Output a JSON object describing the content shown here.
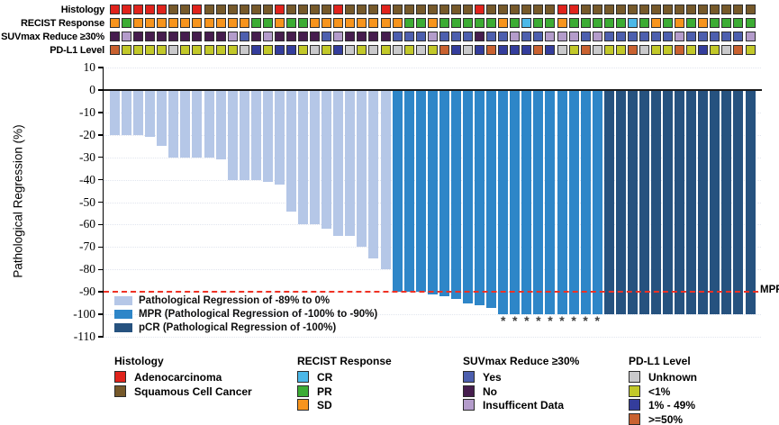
{
  "tracks": {
    "labels": [
      "Histology",
      "RECIST Response",
      "SUVmax Reduce ≥30%",
      "PD-L1 Level"
    ],
    "palette": {
      "R": "#E0231C",
      "S": "#76592A",
      "O": "#F7941D",
      "G": "#3CAC34",
      "C": "#4CB8E8",
      "Y": "#4D5FAE",
      "N": "#461D4E",
      "I": "#B49CCB",
      "U": "#C9C9CB",
      "L": "#C2C829",
      "M": "#343D9C",
      "H": "#C96230"
    },
    "rows": [
      {
        "id": "histology",
        "cells": [
          "R",
          "R",
          "R",
          "R",
          "R",
          "S",
          "S",
          "R",
          "S",
          "S",
          "S",
          "S",
          "S",
          "S",
          "R",
          "S",
          "S",
          "S",
          "S",
          "R",
          "S",
          "S",
          "S",
          "R",
          "S",
          "S",
          "S",
          "S",
          "S",
          "S",
          "S",
          "R",
          "S",
          "S",
          "S",
          "S",
          "S",
          "S",
          "R",
          "R",
          "S",
          "S",
          "S",
          "S",
          "S",
          "S",
          "S",
          "S",
          "S",
          "S",
          "S",
          "S",
          "S",
          "S",
          "S"
        ]
      },
      {
        "id": "recist",
        "cells": [
          "O",
          "G",
          "O",
          "O",
          "O",
          "O",
          "O",
          "O",
          "O",
          "O",
          "O",
          "O",
          "G",
          "G",
          "O",
          "G",
          "G",
          "O",
          "O",
          "O",
          "O",
          "O",
          "O",
          "O",
          "O",
          "G",
          "G",
          "O",
          "G",
          "G",
          "G",
          "G",
          "G",
          "O",
          "G",
          "C",
          "G",
          "G",
          "O",
          "G",
          "G",
          "G",
          "G",
          "G",
          "C",
          "G",
          "O",
          "G",
          "O",
          "G",
          "O",
          "G",
          "G",
          "G",
          "G"
        ]
      },
      {
        "id": "suvmax",
        "cells": [
          "N",
          "I",
          "N",
          "N",
          "N",
          "N",
          "N",
          "N",
          "N",
          "N",
          "I",
          "Y",
          "N",
          "I",
          "N",
          "N",
          "N",
          "N",
          "Y",
          "I",
          "N",
          "N",
          "N",
          "N",
          "Y",
          "Y",
          "Y",
          "I",
          "Y",
          "Y",
          "Y",
          "N",
          "Y",
          "Y",
          "I",
          "Y",
          "Y",
          "I",
          "I",
          "I",
          "Y",
          "I",
          "Y",
          "Y",
          "Y",
          "Y",
          "Y",
          "Y",
          "I",
          "Y",
          "Y",
          "Y",
          "Y",
          "Y",
          "I"
        ]
      },
      {
        "id": "pdl1",
        "cells": [
          "H",
          "L",
          "L",
          "L",
          "L",
          "U",
          "L",
          "L",
          "L",
          "L",
          "L",
          "U",
          "M",
          "L",
          "M",
          "M",
          "L",
          "U",
          "L",
          "M",
          "U",
          "L",
          "U",
          "L",
          "U",
          "L",
          "U",
          "L",
          "H",
          "M",
          "U",
          "M",
          "H",
          "M",
          "M",
          "M",
          "H",
          "M",
          "U",
          "L",
          "H",
          "U",
          "L",
          "L",
          "H",
          "U",
          "L",
          "L",
          "H",
          "L",
          "M",
          "L",
          "U",
          "H",
          "L"
        ]
      }
    ]
  },
  "chart_data": {
    "type": "bar",
    "title": "",
    "xlabel": "",
    "ylabel": "Pathological Regression (%)",
    "ylim": [
      -110,
      10
    ],
    "yticks": [
      10,
      0,
      -10,
      -20,
      -30,
      -40,
      -50,
      -60,
      -70,
      -80,
      -90,
      -100,
      -110
    ],
    "n_bars": 55,
    "values": [
      -20,
      -20,
      -20,
      -21,
      -25,
      -30,
      -30,
      -30,
      -30,
      -31,
      -40,
      -40,
      -40,
      -41,
      -42,
      -54,
      -60,
      -60,
      -62,
      -65,
      -65,
      -70,
      -75,
      -80,
      -90,
      -90,
      -90,
      -91,
      -92,
      -93,
      -95,
      -96,
      -97,
      -100,
      -100,
      -100,
      -100,
      -100,
      -100,
      -100,
      -100,
      -100,
      -100,
      -100,
      -100,
      -100,
      -100,
      -100,
      -100,
      -100,
      -100,
      -100,
      -100,
      -100,
      -100
    ],
    "bar_groups": [
      {
        "category": "PR89",
        "label": "Pathological Regression of -89% to 0%",
        "count": 24
      },
      {
        "category": "MPR",
        "label": "MPR (Pathological Regression of -100% to -90%)",
        "count": 18
      },
      {
        "category": "pCR",
        "label": "pCR (Pathological Regression of -100%)",
        "count": 13
      }
    ],
    "colors": {
      "PR89": "#B5C7E7",
      "MPR": "#2E86C8",
      "pCR": "#26527F"
    },
    "reference_line": {
      "y": -90,
      "label": "MPR",
      "color": "#EE3124",
      "style": "dashed"
    },
    "asterisk_bars": [
      34,
      35,
      36,
      37,
      38,
      39,
      40,
      41,
      42
    ],
    "asterisk_symbol": "*",
    "grid": "faint dotted horizontal lines every 10",
    "legend_position": "inside plot, bottom-left"
  },
  "plot_legend": {
    "items": [
      {
        "color": "#B5C7E7",
        "label": "Pathological Regression of -89% to 0%"
      },
      {
        "color": "#2E86C8",
        "label": "MPR (Pathological Regression of -100% to -90%)"
      },
      {
        "color": "#26527F",
        "label": "pCR (Pathological Regression of -100%)"
      }
    ]
  },
  "bottom_legends": [
    {
      "title": "Histology",
      "items": [
        {
          "code": "R",
          "label": "Adenocarcinoma"
        },
        {
          "code": "S",
          "label": "Squamous Cell Cancer"
        }
      ]
    },
    {
      "title": "RECIST Response",
      "items": [
        {
          "code": "C",
          "label": "CR"
        },
        {
          "code": "G",
          "label": "PR"
        },
        {
          "code": "O",
          "label": "SD"
        }
      ]
    },
    {
      "title": "SUVmax Reduce ≥30%",
      "items": [
        {
          "code": "Y",
          "label": "Yes"
        },
        {
          "code": "N",
          "label": "No"
        },
        {
          "code": "I",
          "label": "Insufficent Data"
        }
      ]
    },
    {
      "title": "PD-L1 Level",
      "items": [
        {
          "code": "U",
          "label": "Unknown"
        },
        {
          "code": "L",
          "label": "<1%"
        },
        {
          "code": "M",
          "label": "1% - 49%"
        },
        {
          "code": "H",
          "label": ">=50%"
        }
      ]
    }
  ]
}
